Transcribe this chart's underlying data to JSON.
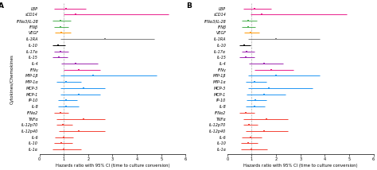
{
  "panel_A": {
    "labels": [
      "LBP",
      "sCD14",
      "IFNα3/IL-28",
      "IFNβ",
      "VEGF",
      "IL-1RA",
      "IL-10",
      "IL-17α",
      "IL-15",
      "IL-4",
      "IFNγ",
      "MIP-1β",
      "MIP-1α",
      "MCP-3",
      "MCP-1",
      "IP-10",
      "IL-8",
      "IFNα2",
      "TNFα",
      "IL-12p70",
      "IL-12p40",
      "IL-6",
      "IL-10",
      "IL-1α"
    ],
    "centers": [
      1.1,
      1.5,
      0.85,
      0.85,
      0.9,
      2.7,
      0.75,
      0.85,
      0.8,
      1.5,
      1.6,
      2.2,
      1.1,
      1.8,
      1.6,
      1.1,
      1.1,
      0.85,
      1.8,
      0.95,
      1.6,
      1.0,
      0.9,
      1.0
    ],
    "lo": [
      0.6,
      1.0,
      0.55,
      0.6,
      0.65,
      0.85,
      0.55,
      0.6,
      0.55,
      0.9,
      1.0,
      0.85,
      0.7,
      0.85,
      0.85,
      0.75,
      0.75,
      0.6,
      0.7,
      0.7,
      0.8,
      0.65,
      0.6,
      0.55
    ],
    "hi": [
      1.9,
      5.3,
      1.3,
      1.2,
      1.3,
      4.7,
      1.05,
      1.2,
      1.15,
      2.4,
      2.5,
      4.8,
      1.7,
      2.7,
      2.5,
      1.55,
      1.6,
      1.2,
      2.7,
      1.35,
      2.7,
      1.4,
      1.35,
      1.7
    ],
    "colors": [
      "#e91e8c",
      "#e91e8c",
      "#4caf50",
      "#4caf50",
      "#ff9800",
      "#808080",
      "#000000",
      "#9c27b0",
      "#9c27b0",
      "#9c27b0",
      "#e91e8c",
      "#2196f3",
      "#2196f3",
      "#2196f3",
      "#2196f3",
      "#2196f3",
      "#2196f3",
      "#f44336",
      "#f44336",
      "#f44336",
      "#f44336",
      "#f44336",
      "#f44336",
      "#f44336"
    ]
  },
  "panel_B": {
    "labels": [
      "LBP",
      "sCD14",
      "IFNα3/IL-28",
      "IFNβ",
      "VEGF",
      "IL-1RA",
      "IL-10",
      "IL-17α",
      "IL-15",
      "IL-4",
      "IFNγ",
      "MIP-1β",
      "MIP-1α",
      "MCP-3",
      "MCP-1",
      "IP-10",
      "IL-8",
      "IFNα2",
      "TNFα",
      "IL-12p70",
      "IL-12p40",
      "IL-6",
      "IL-10",
      "IL-1α"
    ],
    "centers": [
      1.1,
      1.4,
      0.85,
      0.85,
      0.95,
      2.0,
      0.7,
      0.8,
      0.75,
      1.5,
      1.8,
      2.0,
      1.1,
      1.7,
      1.5,
      1.15,
      1.1,
      0.75,
      1.6,
      0.9,
      1.5,
      0.95,
      0.85,
      1.0
    ],
    "lo": [
      0.65,
      0.95,
      0.6,
      0.6,
      0.7,
      0.85,
      0.5,
      0.58,
      0.5,
      0.9,
      1.1,
      0.85,
      0.75,
      0.85,
      0.8,
      0.8,
      0.75,
      0.5,
      0.65,
      0.65,
      0.75,
      0.6,
      0.55,
      0.55
    ],
    "hi": [
      1.8,
      4.9,
      1.2,
      1.15,
      1.3,
      3.8,
      0.95,
      1.1,
      1.1,
      2.3,
      2.7,
      3.8,
      1.6,
      3.5,
      2.4,
      1.6,
      1.55,
      1.1,
      2.5,
      1.25,
      2.5,
      1.4,
      1.25,
      1.65
    ],
    "colors": [
      "#e91e8c",
      "#e91e8c",
      "#4caf50",
      "#4caf50",
      "#ff9800",
      "#808080",
      "#000000",
      "#9c27b0",
      "#9c27b0",
      "#9c27b0",
      "#e91e8c",
      "#2196f3",
      "#2196f3",
      "#2196f3",
      "#2196f3",
      "#2196f3",
      "#2196f3",
      "#f44336",
      "#f44336",
      "#f44336",
      "#f44336",
      "#f44336",
      "#f44336",
      "#f44336"
    ]
  },
  "xlim": [
    0,
    6
  ],
  "xticks": [
    0,
    1,
    2,
    3,
    4,
    5,
    6
  ],
  "vline": 1.0,
  "xlabel": "Hazards ratio with 95% CI (time to culture conversion)",
  "ylabel": "Cytokines/Chemokines",
  "panel_labels": [
    "A",
    "B"
  ],
  "label_fontsize": 3.5,
  "tick_fontsize": 3.5,
  "axis_label_fontsize": 3.8,
  "ylabel_fontsize": 4.0,
  "linewidth": 0.7,
  "markersize": 1.5
}
